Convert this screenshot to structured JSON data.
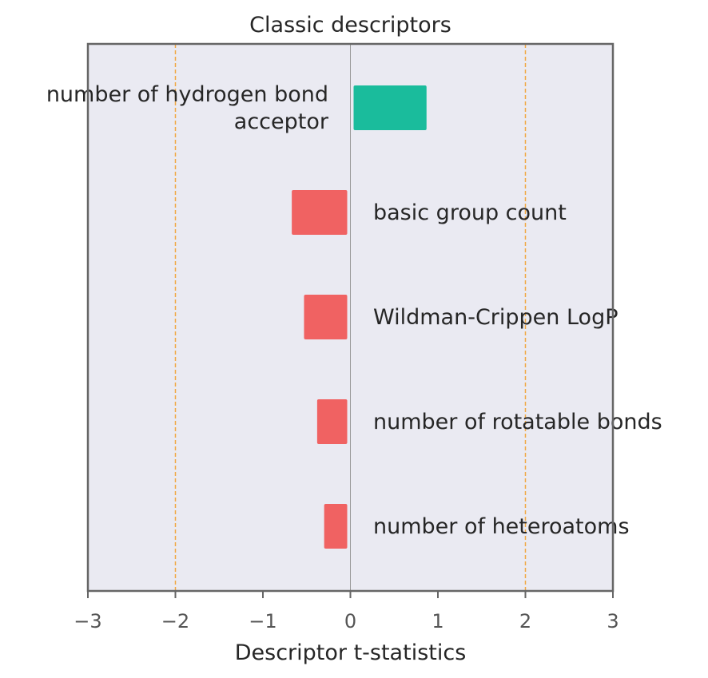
{
  "chart_data": {
    "type": "bar",
    "orientation": "horizontal",
    "title": "Classic descriptors",
    "xlabel": "Descriptor t-statistics",
    "ylabel": "",
    "xlim": [
      -3,
      3
    ],
    "xticks": [
      -3,
      -2,
      -1,
      0,
      1,
      2,
      3
    ],
    "xtick_labels": [
      "−3",
      "−2",
      "−1",
      "0",
      "1",
      "2",
      "3"
    ],
    "threshold_lines": [
      -2,
      2
    ],
    "grid": false,
    "categories": [
      "number of hydrogen bond acceptor",
      "basic group count",
      "Wildman-Crippen LogP",
      "number of rotatable bonds",
      "number of heteroatoms"
    ],
    "category_label_lines": [
      [
        "number of hydrogen bond",
        "acceptor"
      ],
      [
        "basic group count"
      ],
      [
        "Wildman-Crippen LogP"
      ],
      [
        "number of rotatable bonds"
      ],
      [
        "number of heteroatoms"
      ]
    ],
    "values": [
      0.87,
      -0.67,
      -0.53,
      -0.38,
      -0.3
    ]
  },
  "colors": {
    "positive": "#1abc9c",
    "negative": "#f06262",
    "background": "#eaeaf2",
    "threshold": "#f0a742",
    "zero_line": "#999999",
    "frame": "#666666"
  }
}
